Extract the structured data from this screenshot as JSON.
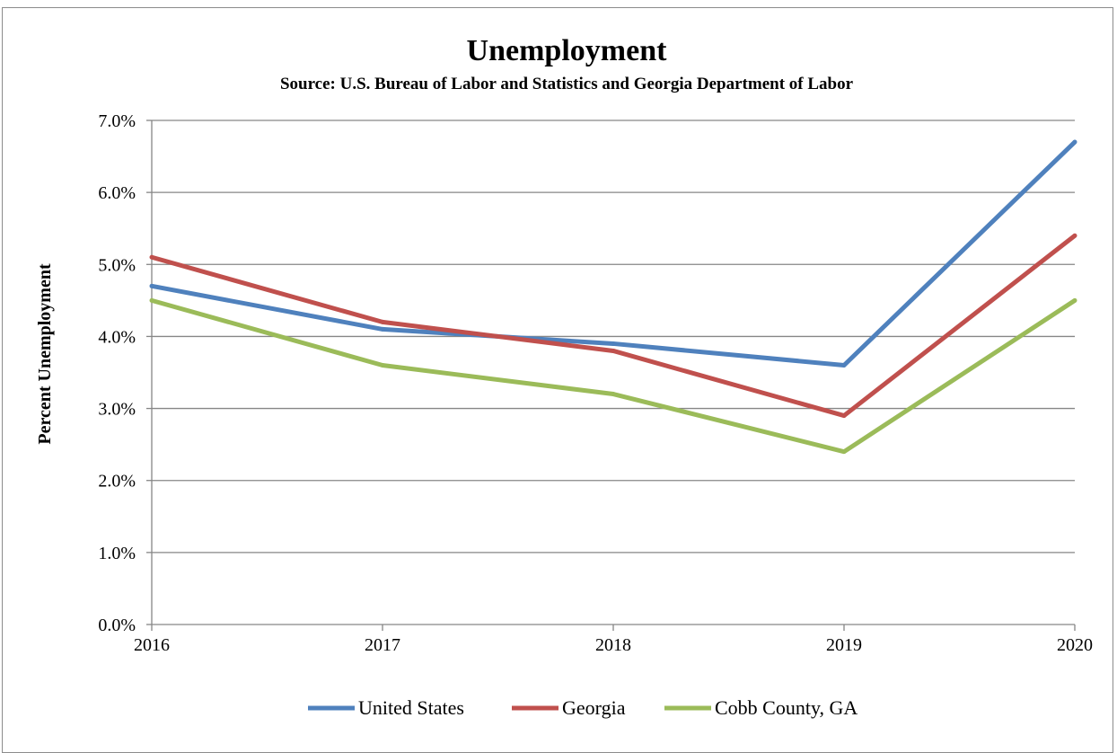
{
  "chart_data": {
    "type": "line",
    "title": "Unemployment",
    "subtitle": "Source: U.S. Bureau of Labor and Statistics and Georgia Department of Labor",
    "xlabel": "",
    "ylabel": "Percent  Unemployment",
    "categories": [
      "2016",
      "2017",
      "2018",
      "2019",
      "2020"
    ],
    "yticks": [
      "0.0%",
      "1.0%",
      "2.0%",
      "3.0%",
      "4.0%",
      "5.0%",
      "6.0%",
      "7.0%"
    ],
    "ylim": [
      0,
      7
    ],
    "grid": true,
    "legend_position": "bottom",
    "series": [
      {
        "name": "United States",
        "color": "#4f81bd",
        "values": [
          4.7,
          4.1,
          3.9,
          3.6,
          6.7
        ]
      },
      {
        "name": "Georgia",
        "color": "#c0504d",
        "values": [
          5.1,
          4.2,
          3.8,
          2.9,
          5.4
        ]
      },
      {
        "name": "Cobb County, GA",
        "color": "#9bbb59",
        "values": [
          4.5,
          3.6,
          3.2,
          2.4,
          4.5
        ]
      }
    ]
  }
}
